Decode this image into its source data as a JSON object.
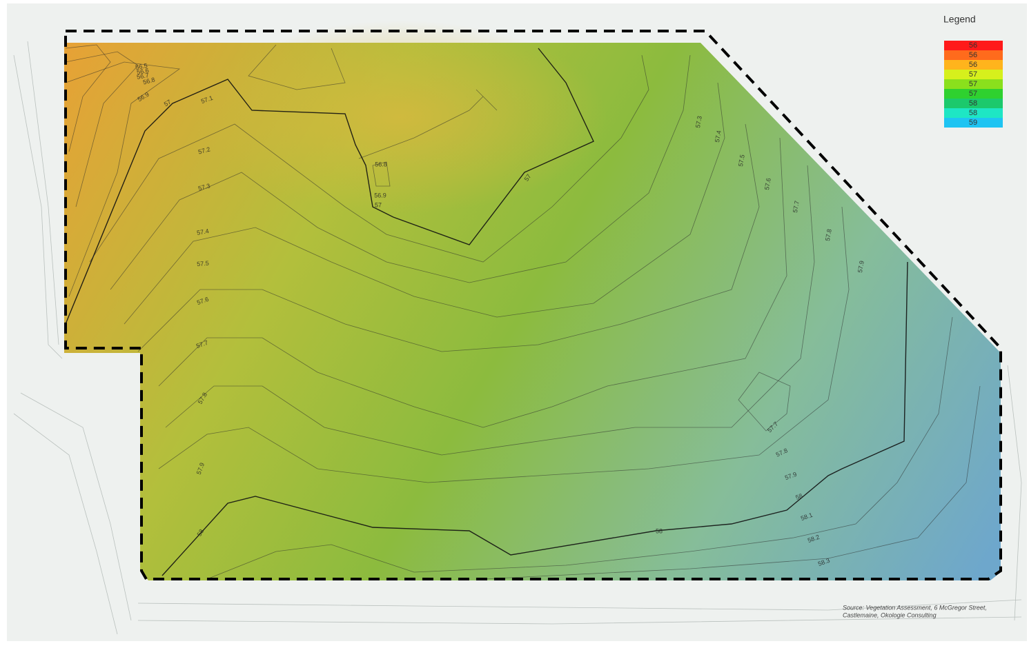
{
  "legend": {
    "title": "Legend",
    "entries": [
      {
        "label": "56",
        "color": "#ff1a1a"
      },
      {
        "label": "56",
        "color": "#ff6b1c"
      },
      {
        "label": "56",
        "color": "#ffb41c"
      },
      {
        "label": "57",
        "color": "#d6f01c"
      },
      {
        "label": "57",
        "color": "#8ae01c"
      },
      {
        "label": "57",
        "color": "#2fd12f"
      },
      {
        "label": "58",
        "color": "#1cc96c"
      },
      {
        "label": "58",
        "color": "#1ee6c4"
      },
      {
        "label": "59",
        "color": "#1ec4f2"
      }
    ]
  },
  "contour_labels": [
    "56.5",
    "56.6",
    "56.7",
    "56.8",
    "56.9",
    "57",
    "57.1",
    "57.2",
    "57.3",
    "57.4",
    "57.5",
    "57.6",
    "57.7",
    "57.8",
    "57.9",
    "58",
    "56.8",
    "56.9",
    "57",
    "57",
    "57.3",
    "57.4",
    "57.5",
    "57.6",
    "57.7",
    "57.8",
    "57.9",
    "57.7",
    "57.8",
    "57.9",
    "58",
    "58.1",
    "58.2",
    "58.3",
    "58"
  ],
  "source": [
    "Source: Vegetation Assessment, 6 McGregor Street,",
    "Castlemaine, Okologie Consulting"
  ]
}
